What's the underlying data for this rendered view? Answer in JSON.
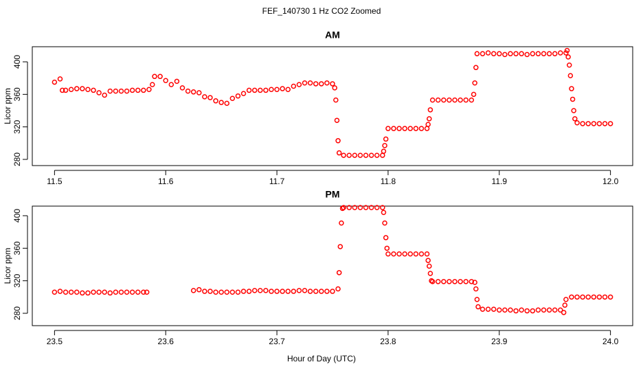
{
  "figure": {
    "title": "FEF_140730  1 Hz CO2 Zoomed",
    "x_label": "Hour of Day (UTC)"
  },
  "chart_data": [
    {
      "type": "scatter",
      "title": "AM",
      "y_label": "Licor ppm",
      "color": "#ff0000",
      "xlim": [
        11.48,
        12.02
      ],
      "ylim": [
        272.4,
        418.6
      ],
      "xticks": [
        11.5,
        11.6,
        11.7,
        11.8,
        11.9,
        {
          "value": 12,
          "label": "12.0"
        }
      ],
      "yticks": [
        280,
        320,
        360,
        400
      ],
      "x": [
        11.5,
        11.505,
        11.507,
        11.51,
        11.515,
        11.52,
        11.525,
        11.53,
        11.535,
        11.54,
        11.545,
        11.55,
        11.555,
        11.56,
        11.565,
        11.57,
        11.575,
        11.58,
        11.585,
        11.588,
        11.59,
        11.595,
        11.6,
        11.605,
        11.61,
        11.615,
        11.62,
        11.625,
        11.63,
        11.635,
        11.64,
        11.645,
        11.65,
        11.655,
        11.66,
        11.665,
        11.67,
        11.675,
        11.68,
        11.685,
        11.69,
        11.695,
        11.7,
        11.705,
        11.71,
        11.715,
        11.72,
        11.725,
        11.73,
        11.735,
        11.74,
        11.745,
        11.75,
        11.752,
        11.753,
        11.754,
        11.755,
        11.756,
        11.76,
        11.765,
        11.77,
        11.775,
        11.78,
        11.785,
        11.79,
        11.795,
        11.796,
        11.797,
        11.798,
        11.8,
        11.805,
        11.81,
        11.815,
        11.82,
        11.825,
        11.83,
        11.835,
        11.836,
        11.837,
        11.838,
        11.84,
        11.845,
        11.85,
        11.855,
        11.86,
        11.865,
        11.87,
        11.875,
        11.877,
        11.878,
        11.879,
        11.88,
        11.885,
        11.89,
        11.895,
        11.9,
        11.905,
        11.91,
        11.915,
        11.92,
        11.925,
        11.93,
        11.935,
        11.94,
        11.945,
        11.95,
        11.955,
        11.96,
        11.961,
        11.962,
        11.963,
        11.964,
        11.965,
        11.966,
        11.967,
        11.968,
        11.97,
        11.975,
        11.98,
        11.985,
        11.99,
        11.995,
        12.0
      ],
      "values": [
        375,
        379,
        365,
        365,
        366,
        367,
        367,
        366,
        365,
        362,
        359,
        364,
        364,
        364,
        364,
        365,
        365,
        365,
        366,
        372,
        382,
        382,
        377,
        372,
        376,
        368,
        364,
        363,
        362,
        357,
        356,
        352,
        350,
        349,
        355,
        358,
        361,
        365,
        365,
        365,
        365,
        366,
        366,
        367,
        366,
        370,
        372,
        374,
        374,
        373,
        373,
        374,
        373,
        368,
        353,
        328,
        303,
        288,
        285,
        285,
        285,
        285,
        285,
        285,
        285,
        285,
        290,
        297,
        305,
        318,
        318,
        318,
        318,
        318,
        318,
        318,
        318,
        323,
        330,
        341,
        353,
        353,
        353,
        353,
        353,
        353,
        353,
        353,
        360,
        374,
        393,
        410,
        410,
        411,
        410,
        410,
        409,
        410,
        410,
        410,
        409,
        410,
        410,
        410,
        410,
        410,
        411,
        411,
        414,
        406,
        396,
        383,
        367,
        354,
        340,
        330,
        325,
        324,
        324,
        324,
        324,
        324,
        324
      ]
    },
    {
      "type": "scatter",
      "title": "PM",
      "y_label": "Licor ppm",
      "color": "#ff0000",
      "xlim": [
        23.48,
        24.02
      ],
      "ylim": [
        264.8,
        411.8
      ],
      "xticks": [
        23.5,
        23.6,
        23.7,
        23.8,
        23.9,
        {
          "value": 24,
          "label": "24.0"
        }
      ],
      "yticks": [
        280,
        320,
        360,
        400
      ],
      "x": [
        23.5,
        23.505,
        23.51,
        23.515,
        23.52,
        23.525,
        23.53,
        23.535,
        23.54,
        23.545,
        23.55,
        23.555,
        23.56,
        23.565,
        23.57,
        23.575,
        23.58,
        23.583,
        23.625,
        23.63,
        23.635,
        23.64,
        23.645,
        23.65,
        23.655,
        23.66,
        23.665,
        23.67,
        23.675,
        23.68,
        23.685,
        23.69,
        23.695,
        23.7,
        23.705,
        23.71,
        23.715,
        23.72,
        23.725,
        23.73,
        23.735,
        23.74,
        23.745,
        23.75,
        23.755,
        23.756,
        23.757,
        23.758,
        23.759,
        23.76,
        23.765,
        23.77,
        23.775,
        23.78,
        23.785,
        23.79,
        23.795,
        23.796,
        23.797,
        23.798,
        23.799,
        23.8,
        23.805,
        23.81,
        23.815,
        23.82,
        23.825,
        23.83,
        23.835,
        23.836,
        23.837,
        23.838,
        23.839,
        23.84,
        23.845,
        23.85,
        23.855,
        23.86,
        23.865,
        23.87,
        23.875,
        23.878,
        23.879,
        23.88,
        23.881,
        23.885,
        23.89,
        23.895,
        23.9,
        23.905,
        23.91,
        23.915,
        23.92,
        23.925,
        23.93,
        23.935,
        23.94,
        23.945,
        23.95,
        23.955,
        23.958,
        23.959,
        23.96,
        23.965,
        23.97,
        23.975,
        23.98,
        23.985,
        23.99,
        23.995,
        24.0
      ],
      "values": [
        306,
        307,
        306,
        306,
        306,
        305,
        305,
        306,
        306,
        306,
        305,
        306,
        306,
        306,
        306,
        306,
        306,
        306,
        308,
        309,
        307,
        307,
        306,
        306,
        306,
        306,
        306,
        307,
        307,
        308,
        308,
        308,
        307,
        307,
        307,
        307,
        307,
        308,
        308,
        307,
        307,
        307,
        307,
        307,
        310,
        330,
        362,
        391,
        409,
        410,
        410,
        410,
        410,
        410,
        410,
        410,
        410,
        404,
        391,
        373,
        360,
        353,
        353,
        353,
        353,
        353,
        353,
        353,
        353,
        345,
        338,
        329,
        320,
        319,
        319,
        319,
        319,
        319,
        319,
        319,
        319,
        318,
        310,
        297,
        288,
        285,
        285,
        285,
        284,
        284,
        284,
        283,
        284,
        283,
        283,
        284,
        284,
        284,
        284,
        284,
        281,
        290,
        297,
        300,
        300,
        300,
        300,
        300,
        300,
        300,
        300
      ]
    }
  ]
}
